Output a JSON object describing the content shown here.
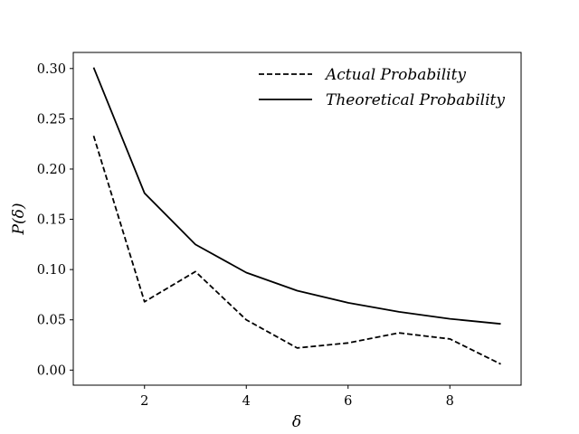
{
  "chart_data": {
    "type": "line",
    "title": "",
    "xlabel": "δ",
    "ylabel": "P(δ)",
    "xlim": [
      0.6,
      9.4
    ],
    "ylim": [
      -0.015,
      0.316
    ],
    "xticks": [
      2,
      4,
      6,
      8
    ],
    "yticks": [
      0.0,
      0.05,
      0.1,
      0.15,
      0.2,
      0.25,
      0.3
    ],
    "ytick_labels": [
      "0.00",
      "0.05",
      "0.10",
      "0.15",
      "0.20",
      "0.25",
      "0.30"
    ],
    "grid": false,
    "legend_position": "top-right",
    "x": [
      1,
      2,
      3,
      4,
      5,
      6,
      7,
      8,
      9
    ],
    "series": [
      {
        "name": "Actual Probability",
        "style": "dashed",
        "color": "#000000",
        "values": [
          0.233,
          0.068,
          0.098,
          0.05,
          0.022,
          0.027,
          0.037,
          0.031,
          0.006
        ]
      },
      {
        "name": "Theoretical Probability",
        "style": "solid",
        "color": "#000000",
        "values": [
          0.301,
          0.176,
          0.125,
          0.097,
          0.079,
          0.067,
          0.058,
          0.051,
          0.046
        ]
      }
    ]
  }
}
